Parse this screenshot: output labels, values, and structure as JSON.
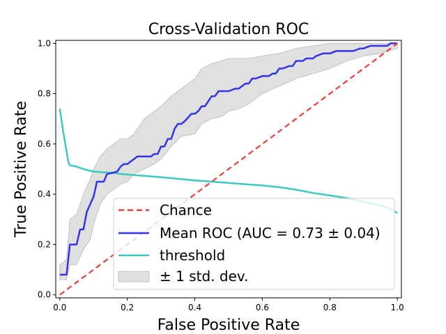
{
  "chart_data": {
    "type": "line",
    "title": "Cross-Validation ROC",
    "xlabel": "False Positive Rate",
    "ylabel": "True Positive Rate",
    "xlim": [
      0,
      1
    ],
    "ylim": [
      0,
      1
    ],
    "xticks": [
      "0.0",
      "0.2",
      "0.4",
      "0.6",
      "0.8",
      "1.0"
    ],
    "yticks": [
      "0.0",
      "0.2",
      "0.4",
      "0.6",
      "0.8",
      "1.0"
    ],
    "grid": false,
    "legend_position": "lower-right",
    "series": [
      {
        "name": "Chance",
        "color": "#f03c3c",
        "style": "dashed",
        "x": [
          0,
          1
        ],
        "y": [
          0,
          1
        ]
      },
      {
        "name": "Mean ROC (AUC = 0.73 ± 0.04)",
        "color": "#3434e6",
        "style": "solid",
        "x": [
          0,
          0.02,
          0.03,
          0.05,
          0.06,
          0.07,
          0.08,
          0.09,
          0.1,
          0.11,
          0.13,
          0.14,
          0.17,
          0.18,
          0.19,
          0.2,
          0.22,
          0.23,
          0.27,
          0.28,
          0.29,
          0.3,
          0.31,
          0.32,
          0.33,
          0.34,
          0.35,
          0.36,
          0.37,
          0.39,
          0.4,
          0.41,
          0.42,
          0.43,
          0.44,
          0.45,
          0.46,
          0.47,
          0.48,
          0.5,
          0.52,
          0.53,
          0.55,
          0.56,
          0.57,
          0.58,
          0.6,
          0.62,
          0.63,
          0.64,
          0.65,
          0.66,
          0.68,
          0.69,
          0.7,
          0.72,
          0.73,
          0.75,
          0.76,
          0.78,
          0.8,
          0.82,
          0.85,
          0.87,
          0.89,
          0.9,
          0.92,
          0.95,
          0.97,
          0.98,
          1.0
        ],
        "y": [
          0.08,
          0.08,
          0.2,
          0.2,
          0.26,
          0.26,
          0.33,
          0.36,
          0.39,
          0.45,
          0.45,
          0.48,
          0.49,
          0.51,
          0.52,
          0.52,
          0.54,
          0.55,
          0.55,
          0.56,
          0.56,
          0.59,
          0.59,
          0.62,
          0.62,
          0.66,
          0.68,
          0.68,
          0.69,
          0.72,
          0.72,
          0.73,
          0.75,
          0.75,
          0.77,
          0.79,
          0.79,
          0.81,
          0.81,
          0.81,
          0.82,
          0.82,
          0.84,
          0.84,
          0.86,
          0.86,
          0.87,
          0.87,
          0.88,
          0.88,
          0.9,
          0.9,
          0.91,
          0.91,
          0.93,
          0.93,
          0.94,
          0.94,
          0.95,
          0.96,
          0.96,
          0.97,
          0.97,
          0.97,
          0.98,
          0.98,
          0.99,
          0.99,
          0.99,
          1.0,
          1.0
        ]
      },
      {
        "name": "threshold",
        "color": "#3cc8be",
        "style": "solid",
        "x": [
          0,
          0.01,
          0.02,
          0.025,
          0.03,
          0.05,
          0.07,
          0.1,
          0.15,
          0.2,
          0.3,
          0.4,
          0.5,
          0.55,
          0.6,
          0.65,
          0.7,
          0.75,
          0.8,
          0.85,
          0.9,
          0.95,
          0.98,
          1.0
        ],
        "y": [
          0.74,
          0.65,
          0.57,
          0.53,
          0.515,
          0.51,
          0.5,
          0.49,
          0.485,
          0.478,
          0.468,
          0.455,
          0.445,
          0.44,
          0.435,
          0.428,
          0.418,
          0.405,
          0.395,
          0.385,
          0.37,
          0.355,
          0.34,
          0.325
        ]
      }
    ],
    "bands": [
      {
        "name": "± 1 std. dev.",
        "color": "#e0e0e0",
        "edge_color": "#b8b8b8",
        "x": [
          0,
          0.02,
          0.03,
          0.05,
          0.07,
          0.09,
          0.1,
          0.12,
          0.14,
          0.16,
          0.18,
          0.2,
          0.22,
          0.25,
          0.28,
          0.3,
          0.33,
          0.36,
          0.4,
          0.42,
          0.45,
          0.48,
          0.5,
          0.53,
          0.56,
          0.6,
          0.65,
          0.7,
          0.75,
          0.8,
          0.85,
          0.9,
          0.95,
          1.0
        ],
        "upper": [
          0.12,
          0.14,
          0.3,
          0.32,
          0.4,
          0.46,
          0.5,
          0.55,
          0.58,
          0.6,
          0.62,
          0.62,
          0.64,
          0.7,
          0.73,
          0.75,
          0.79,
          0.82,
          0.86,
          0.9,
          0.92,
          0.93,
          0.94,
          0.94,
          0.94,
          0.95,
          0.96,
          0.98,
          0.99,
          1.0,
          1.0,
          1.0,
          1.0,
          1.0
        ],
        "lower": [
          0.06,
          0.06,
          0.12,
          0.12,
          0.18,
          0.22,
          0.28,
          0.36,
          0.4,
          0.42,
          0.44,
          0.45,
          0.48,
          0.5,
          0.52,
          0.54,
          0.59,
          0.63,
          0.64,
          0.68,
          0.7,
          0.71,
          0.73,
          0.74,
          0.76,
          0.8,
          0.83,
          0.86,
          0.88,
          0.9,
          0.93,
          0.95,
          0.96,
          0.98
        ]
      }
    ],
    "legend": [
      {
        "label": "Chance",
        "kind": "dashed-line",
        "color": "#f03c3c"
      },
      {
        "label": "Mean ROC (AUC = 0.73 ± 0.04)",
        "kind": "line",
        "color": "#3434e6"
      },
      {
        "label": "threshold",
        "kind": "line",
        "color": "#3cc8be"
      },
      {
        "label": "± 1 std. dev.",
        "kind": "patch",
        "color": "#e0e0e0"
      }
    ]
  }
}
